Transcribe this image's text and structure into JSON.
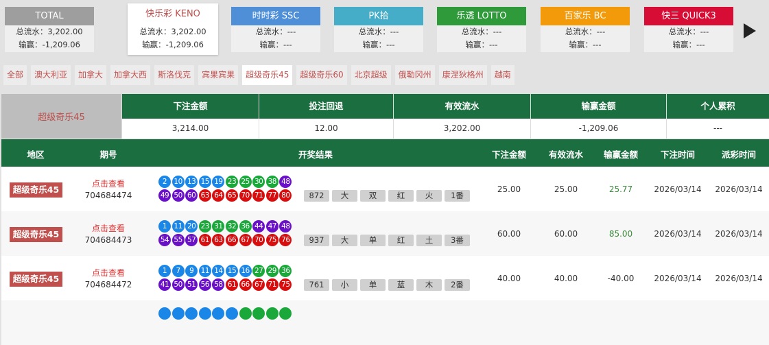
{
  "cards": [
    {
      "title": "TOTAL",
      "color": "#9e9e9e",
      "turnover_label": "总流水：",
      "turnover": "3,202.00",
      "win_label": "输赢：",
      "win": "-1,209.06"
    },
    {
      "title": "快乐彩 KENO",
      "color": "#ffffff",
      "turnover_label": "总流水：",
      "turnover": "3,202.00",
      "win_label": "输赢：",
      "win": "-1,209.06",
      "active": true
    },
    {
      "title": "时时彩 SSC",
      "color": "#4f8fd8",
      "turnover_label": "总流水：",
      "turnover": "---",
      "win_label": "输赢：",
      "win": "---"
    },
    {
      "title": "PK拾",
      "color": "#45adc8",
      "turnover_label": "总流水：",
      "turnover": "---",
      "win_label": "输赢：",
      "win": "---"
    },
    {
      "title": "乐透 LOTTO",
      "color": "#2e9a3a",
      "turnover_label": "总流水：",
      "turnover": "---",
      "win_label": "输赢：",
      "win": "---"
    },
    {
      "title": "百家乐 BC",
      "color": "#f39a0a",
      "turnover_label": "总流水：",
      "turnover": "---",
      "win_label": "输赢：",
      "win": "---"
    },
    {
      "title": "快三 QUICK3",
      "color": "#d70d35",
      "turnover_label": "总流水：",
      "turnover": "---",
      "win_label": "输赢：",
      "win": "---"
    }
  ],
  "next_icon": "play-right-icon",
  "tabs": [
    "全部",
    "澳大利亚",
    "加拿大",
    "加拿大西",
    "斯洛伐克",
    "宾果宾果",
    "超级奇乐45",
    "超级奇乐60",
    "北京超级",
    "俄勒冈州",
    "康涅狄格州",
    "越南"
  ],
  "active_tab": "超级奇乐45",
  "summary": {
    "label": "超级奇乐45",
    "columns": [
      {
        "header": "下注金额",
        "value": "3,214.00"
      },
      {
        "header": "投注回退",
        "value": "12.00"
      },
      {
        "header": "有效流水",
        "value": "3,202.00"
      },
      {
        "header": "输赢金额",
        "value": "-1,209.06"
      },
      {
        "header": "个人累积",
        "value": "---"
      }
    ]
  },
  "table": {
    "headers": [
      "地区",
      "期号",
      "开奖结果",
      "下注金额",
      "有效流水",
      "输赢金额",
      "下注时间",
      "派彩时间"
    ],
    "ball_colors": {
      "blue": "#1a86e8",
      "green": "#1aa83a",
      "purple": "#6a10c8",
      "red": "#d90d0d"
    },
    "rows": [
      {
        "region": "超级奇乐45",
        "view": "点击查看",
        "issue": "704684474",
        "balls": [
          2,
          10,
          13,
          15,
          19,
          23,
          25,
          30,
          38,
          48,
          49,
          50,
          60,
          63,
          64,
          65,
          70,
          71,
          77,
          80
        ],
        "tags": [
          "872",
          "大",
          "双",
          "红",
          "火",
          "1番"
        ],
        "bet": "25.00",
        "valid": "25.00",
        "win": "25.77",
        "win_color": "#3a8a3a",
        "bet_time": "2026/03/14",
        "payout_time": "2026/03/14"
      },
      {
        "region": "超级奇乐45",
        "view": "点击查看",
        "issue": "704684473",
        "balls": [
          1,
          11,
          20,
          23,
          31,
          32,
          36,
          44,
          47,
          48,
          54,
          55,
          57,
          61,
          63,
          66,
          67,
          70,
          75,
          76
        ],
        "tags": [
          "937",
          "大",
          "单",
          "红",
          "土",
          "3番"
        ],
        "bet": "60.00",
        "valid": "60.00",
        "win": "85.00",
        "win_color": "#3a8a3a",
        "bet_time": "2026/03/14",
        "payout_time": "2026/03/14"
      },
      {
        "region": "超级奇乐45",
        "view": "点击查看",
        "issue": "704684472",
        "balls": [
          1,
          7,
          9,
          11,
          14,
          15,
          16,
          27,
          29,
          36,
          41,
          50,
          51,
          56,
          58,
          61,
          66,
          67,
          71,
          75
        ],
        "tags": [
          "761",
          "小",
          "单",
          "蓝",
          "木",
          "2番"
        ],
        "bet": "40.00",
        "valid": "40.00",
        "win": "-40.00",
        "win_color": "#333333",
        "bet_time": "2026/03/14",
        "payout_time": "2026/03/14"
      }
    ],
    "partial_row_ball_colors": [
      "blue",
      "blue",
      "blue",
      "blue",
      "blue",
      "blue",
      "green",
      "green",
      "green",
      "green"
    ]
  }
}
